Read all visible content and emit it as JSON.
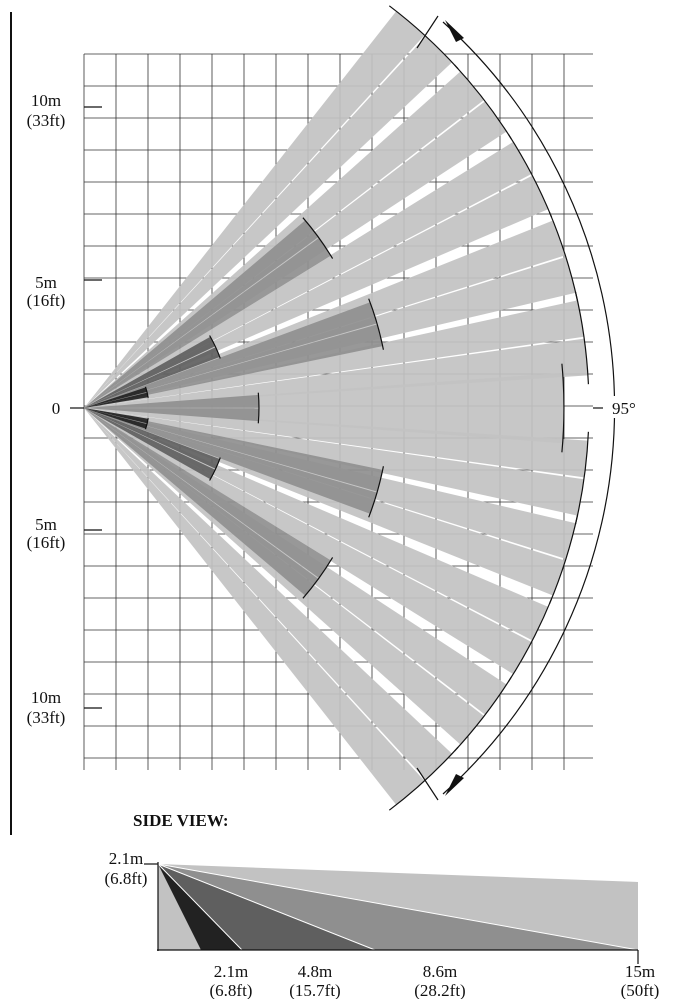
{
  "top_view": {
    "y_labels": [
      {
        "value": "10m",
        "unit": "(33ft)"
      },
      {
        "value": "5m",
        "unit": "(16ft)"
      },
      {
        "value": "0",
        "unit": ""
      },
      {
        "value": "5m",
        "unit": "(16ft)"
      },
      {
        "value": "10m",
        "unit": "(33ft)"
      }
    ],
    "coverage_angle": "95°"
  },
  "side_view": {
    "title": "SIDE VIEW:",
    "height_value": "2.1m",
    "height_unit": "(6.8ft)",
    "x_labels": [
      {
        "value": "2.1m",
        "unit": "(6.8ft)"
      },
      {
        "value": "4.8m",
        "unit": "(15.7ft)"
      },
      {
        "value": "8.6m",
        "unit": "(28.2ft)"
      },
      {
        "value": "15m",
        "unit": "(50ft)"
      }
    ]
  },
  "colors": {
    "light": "#c2c2c2",
    "mid": "#8f8f8f",
    "dark": "#5f5f5f",
    "darkest": "#222222",
    "line": "#111111"
  }
}
